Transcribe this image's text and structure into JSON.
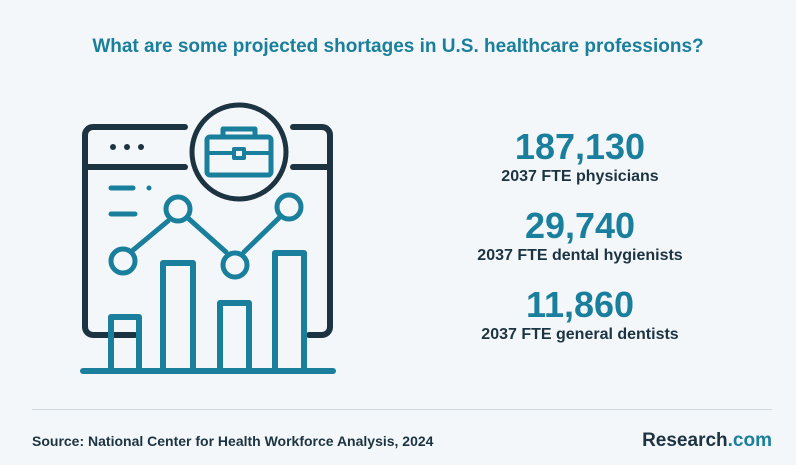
{
  "title": "What are some projected shortages in U.S. healthcare professions?",
  "stats": [
    {
      "value": "187,130",
      "label": "2037 FTE physicians"
    },
    {
      "value": "29,740",
      "label": "2037 FTE dental hygienists"
    },
    {
      "value": "11,860",
      "label": "2037 FTE general dentists"
    }
  ],
  "source": "Source:  National Center for Health Workforce Analysis, 2024",
  "logo": {
    "name": "Research",
    "tld": ".com"
  },
  "colors": {
    "accent": "#1a7f9c",
    "dark": "#1c3341",
    "background": "#f3f7f9"
  },
  "icons": {
    "illustration": "browser-window-chart-briefcase-icon"
  }
}
